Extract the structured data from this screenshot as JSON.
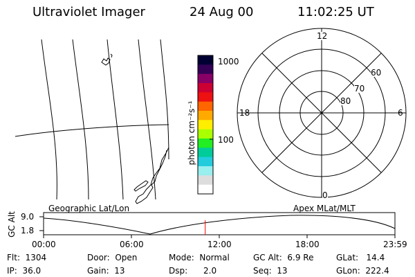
{
  "header": {
    "instrument": "Ultraviolet Imager",
    "date": "24 Aug 00",
    "time": "11:02:25 UT"
  },
  "colorbar": {
    "unit_label": "photon cm⁻²s⁻¹",
    "ticks": [
      "1000",
      "100"
    ],
    "colors": [
      "#000033",
      "#330055",
      "#880066",
      "#cc0033",
      "#ee1111",
      "#ff6600",
      "#ffaa00",
      "#ffee00",
      "#aaff00",
      "#22ee22",
      "#00cc99",
      "#22ccdd",
      "#99eeee",
      "#dddddd",
      "#ffffff"
    ]
  },
  "polar_plot": {
    "hour_labels": [
      "12",
      "18",
      "6",
      "0"
    ],
    "lat_labels": [
      "60",
      "70",
      "80"
    ]
  },
  "timeline": {
    "ylabel": "GC Alt",
    "y_ticks": [
      "9.0",
      "1.8"
    ],
    "left_label": "Geographic Lat/Lon",
    "right_label": "Apex MLat/MLT",
    "x_ticks": [
      "00:00",
      "06:00",
      "12:00",
      "18:00",
      "23:59"
    ],
    "current_time_fraction": 0.46,
    "marker_color": "#ff0000"
  },
  "info": {
    "row1": {
      "flt": "Flt:  1304",
      "door": "Door:  Open",
      "mode": "Mode:  Normal",
      "gcalt": "GC Alt:  6.9 Re",
      "glat": "GLat:   14.4"
    },
    "row2": {
      "ip": "IP:  36.0",
      "gain": "Gain:  13",
      "dsp": "Dsp:      2.0",
      "seq": "Seq:  13",
      "glon": "GLon:  222.4"
    }
  }
}
